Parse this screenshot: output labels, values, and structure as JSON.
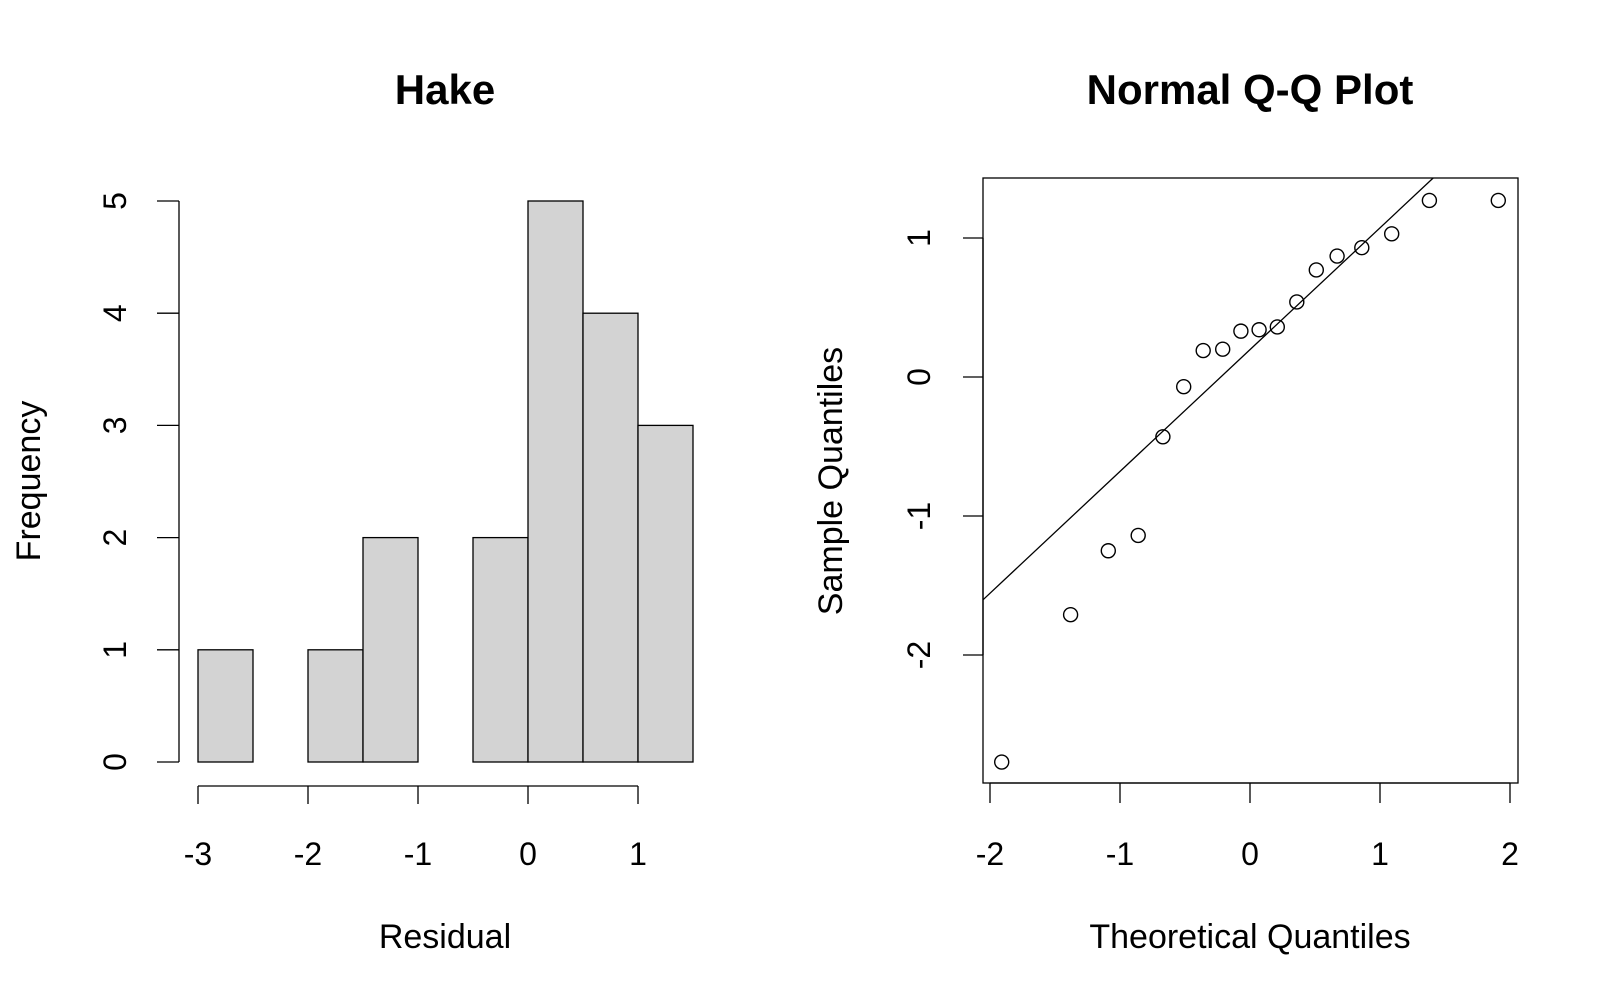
{
  "chart_data": [
    {
      "type": "bar",
      "title": "Hake",
      "xlabel": "Residual",
      "ylabel": "Frequency",
      "bin_edges": [
        -3.0,
        -2.5,
        -2.0,
        -1.5,
        -1.0,
        -0.5,
        0.0,
        0.5,
        1.0,
        1.5
      ],
      "values": [
        1,
        0,
        1,
        2,
        0,
        2,
        5,
        4,
        3
      ],
      "xticks": [
        -3,
        -2,
        -1,
        0,
        1
      ],
      "yticks": [
        0,
        1,
        2,
        3,
        4,
        5
      ],
      "ylim": [
        0,
        5
      ],
      "grid": false,
      "bar_color": "#d3d3d3"
    },
    {
      "type": "scatter",
      "title": "Normal Q-Q Plot",
      "xlabel": "Theoretical Quantiles",
      "ylabel": "Sample Quantiles",
      "xlim": [
        -2.0,
        2.0
      ],
      "ylim": [
        -2.9,
        1.45
      ],
      "xticks": [
        -2,
        -1,
        0,
        1,
        2
      ],
      "yticks": [
        -2,
        -1,
        0,
        1
      ],
      "points": {
        "x": [
          -1.91,
          -1.38,
          -1.09,
          -0.86,
          -0.67,
          -0.51,
          -0.36,
          -0.21,
          -0.07,
          0.07,
          0.21,
          0.36,
          0.51,
          0.67,
          0.86,
          1.09,
          1.38,
          1.91
        ],
        "y": [
          -2.77,
          -1.71,
          -1.25,
          -1.14,
          -0.43,
          -0.07,
          0.19,
          0.2,
          0.33,
          0.34,
          0.36,
          0.54,
          0.77,
          0.87,
          0.93,
          1.03,
          1.27,
          1.27
        ]
      },
      "reference_line": {
        "intercept": 0.21,
        "slope": 0.88
      },
      "grid": false
    }
  ]
}
